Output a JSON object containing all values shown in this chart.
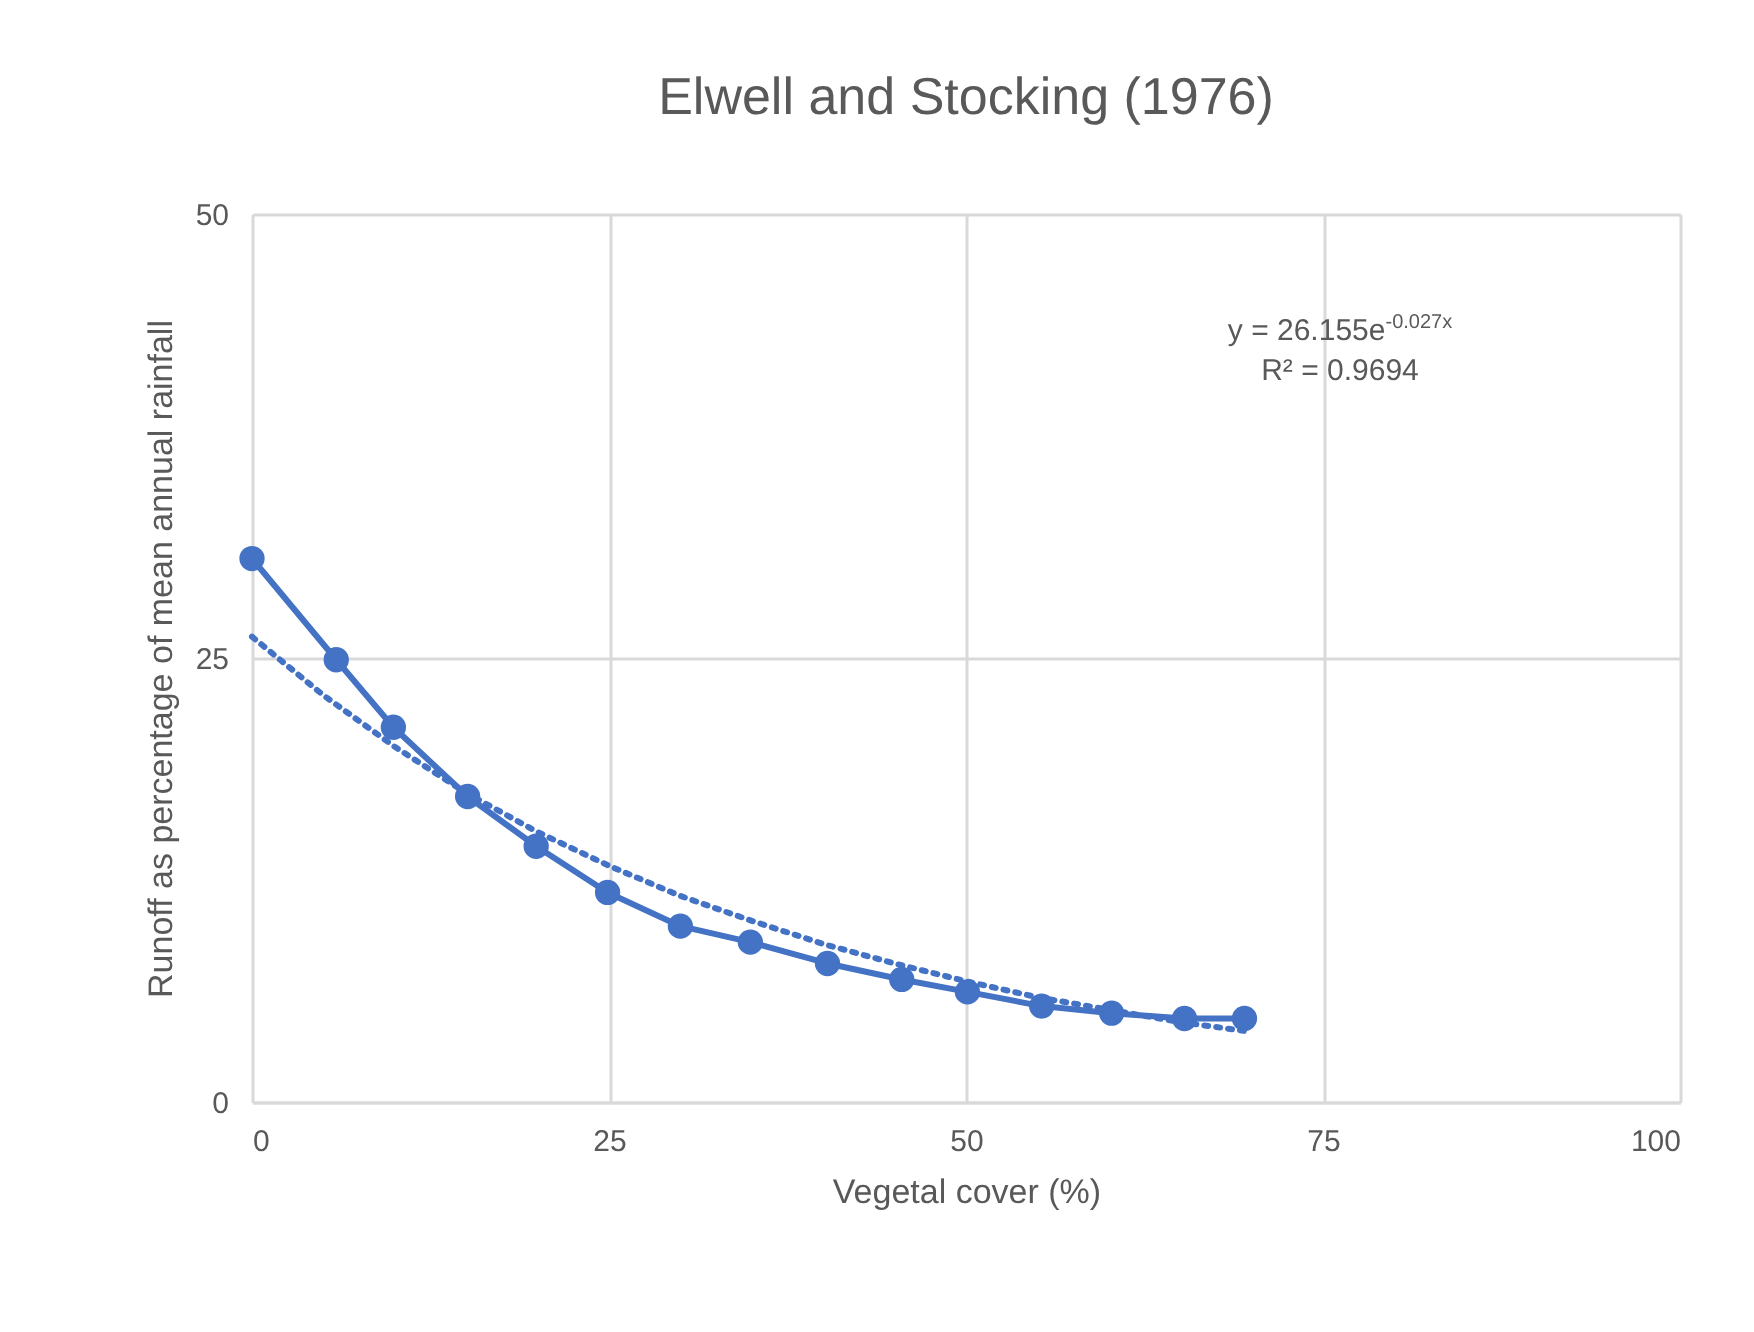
{
  "chart_data": {
    "type": "line",
    "title": "Elwell and Stocking (1976)",
    "xlabel": "Vegetal cover (%)",
    "ylabel": "Runoff as percentage of mean annual rainfall",
    "xlim": [
      0,
      100
    ],
    "xticks": [
      0,
      25,
      50,
      75,
      100
    ],
    "ylim": [
      0,
      50
    ],
    "yticks": [
      0,
      25,
      50
    ],
    "grid": true,
    "annotations": [
      "y = 26.155e$^{-0.027x}$",
      "R² = 0.9694"
    ],
    "series": [
      {
        "color": "#4472c4",
        "marker": "circle",
        "line_style": "solid",
        "x": [
          0,
          5.9,
          9.9,
          15.1,
          19.9,
          24.9,
          30,
          34.9,
          40.3,
          45.5,
          50.1,
          55.3,
          60.2,
          65.3,
          69.5
        ],
        "values": [
          30.6,
          24.9,
          21.1,
          17.2,
          14.4,
          11.8,
          9.9,
          9.0,
          7.8,
          6.9,
          6.2,
          5.4,
          5.0,
          4.7,
          4.7
        ]
      },
      {
        "type": "line",
        "color": "#4472c4",
        "marker": "none",
        "line_style": "dotted",
        "x": [
          0,
          5,
          10,
          15,
          20,
          25,
          30,
          35,
          40,
          45,
          50,
          55,
          60,
          65,
          69.5
        ],
        "values": [
          26.2,
          22.9,
          20.0,
          17.4,
          15.2,
          13.3,
          11.6,
          10.2,
          8.9,
          7.8,
          6.8,
          5.9,
          5.2,
          4.5,
          4.0
        ]
      }
    ]
  }
}
